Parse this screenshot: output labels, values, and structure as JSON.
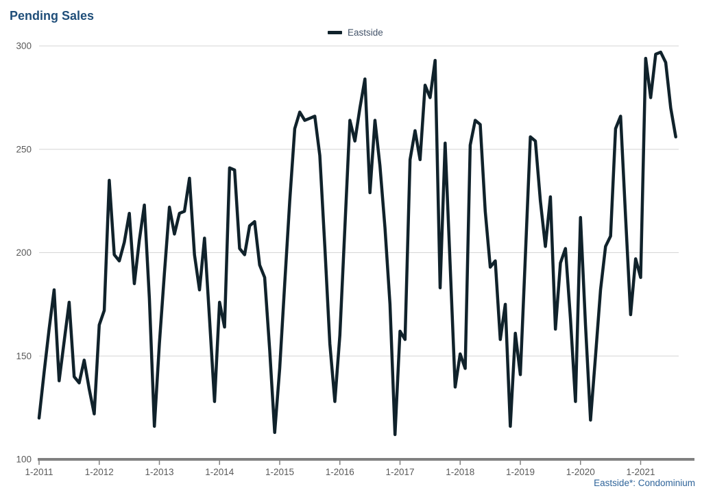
{
  "page": {
    "title": "Pending Sales",
    "footnote": "Eastside*: Condominium"
  },
  "legend": {
    "label": "Eastside"
  },
  "colors": {
    "title": "#1f4e79",
    "legend_label": "#44546a",
    "line": "#10222b",
    "grid": "#d6d6d6",
    "axis": "#808080",
    "tick_label": "#595959",
    "footnote": "#2e6399",
    "background": "#ffffff"
  },
  "chart_data": {
    "type": "line",
    "title": "Pending Sales",
    "grid": "horizontal",
    "legend_position": "top-center",
    "ylim": [
      100,
      300
    ],
    "y_tick_labels": [
      "300",
      "250",
      "200",
      "150",
      "100"
    ],
    "y_tick_values": [
      300,
      250,
      200,
      150,
      100
    ],
    "x_tick_labels": [
      "1-2011",
      "1-2012",
      "1-2013",
      "1-2014",
      "1-2015",
      "1-2016",
      "1-2017",
      "1-2018",
      "1-2019",
      "1-2020",
      "1-2021"
    ],
    "x_start_month": "2011-01",
    "x_end_month": "2021-08",
    "footnote": "Eastside*: Condominium",
    "series": [
      {
        "name": "Eastside",
        "values": [
          120,
          142,
          163,
          182,
          138,
          157,
          176,
          140,
          137,
          148,
          134,
          122,
          165,
          172,
          235,
          199,
          196,
          205,
          219,
          185,
          206,
          223,
          178,
          116,
          156,
          190,
          222,
          209,
          219,
          220,
          236,
          199,
          182,
          207,
          168,
          128,
          176,
          164,
          241,
          240,
          202,
          199,
          213,
          215,
          194,
          188,
          153,
          113,
          144,
          185,
          225,
          260,
          268,
          264,
          265,
          266,
          247,
          203,
          156,
          128,
          160,
          212,
          264,
          254,
          270,
          284,
          229,
          264,
          242,
          212,
          175,
          112,
          162,
          158,
          245,
          259,
          245,
          281,
          275,
          293,
          183,
          253,
          194,
          135,
          151,
          144,
          252,
          264,
          262,
          220,
          193,
          196,
          158,
          175,
          116,
          161,
          141,
          198,
          256,
          254,
          225,
          203,
          227,
          163,
          195,
          202,
          168,
          128,
          217,
          165,
          119,
          150,
          182,
          203,
          208,
          260,
          266,
          217,
          170,
          197,
          188,
          294,
          275,
          296,
          297,
          292,
          270,
          256
        ]
      }
    ]
  }
}
